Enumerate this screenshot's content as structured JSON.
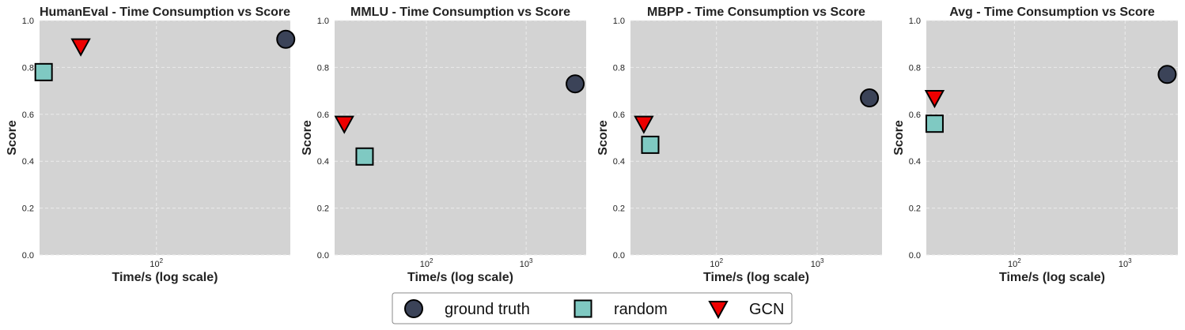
{
  "chart_data": [
    {
      "type": "scatter",
      "title": "HumanEval - Time Consumption vs Score",
      "xlabel": "Time/s (log scale)",
      "ylabel": "Score",
      "xscale": "log",
      "xlim": [
        14,
        950
      ],
      "ylim": [
        0,
        1
      ],
      "yticks": [
        "0.0",
        "0.2",
        "0.4",
        "0.6",
        "0.8",
        "1.0"
      ],
      "xticks": [
        {
          "base": "10",
          "exp": "2",
          "value": 100
        }
      ],
      "grid": true,
      "series": [
        {
          "name": "ground truth",
          "x": [
            880
          ],
          "y": [
            0.92
          ]
        },
        {
          "name": "random",
          "x": [
            15
          ],
          "y": [
            0.78
          ]
        },
        {
          "name": "GCN",
          "x": [
            28
          ],
          "y": [
            0.89
          ]
        }
      ]
    },
    {
      "type": "scatter",
      "title": "MMLU - Time Consumption vs Score",
      "xlabel": "Time/s (log scale)",
      "ylabel": "Score",
      "xscale": "log",
      "xlim": [
        12,
        4000
      ],
      "ylim": [
        0,
        1
      ],
      "yticks": [
        "0.0",
        "0.2",
        "0.4",
        "0.6",
        "0.8",
        "1.0"
      ],
      "xticks": [
        {
          "base": "10",
          "exp": "2",
          "value": 100
        },
        {
          "base": "10",
          "exp": "3",
          "value": 1000
        }
      ],
      "grid": true,
      "series": [
        {
          "name": "ground truth",
          "x": [
            3100
          ],
          "y": [
            0.73
          ]
        },
        {
          "name": "random",
          "x": [
            24
          ],
          "y": [
            0.42
          ]
        },
        {
          "name": "GCN",
          "x": [
            15
          ],
          "y": [
            0.56
          ]
        }
      ]
    },
    {
      "type": "scatter",
      "title": "MBPP - Time Consumption vs Score",
      "xlabel": "Time/s (log scale)",
      "ylabel": "Score",
      "xscale": "log",
      "xlim": [
        14,
        4400
      ],
      "ylim": [
        0,
        1
      ],
      "yticks": [
        "0.0",
        "0.2",
        "0.4",
        "0.6",
        "0.8",
        "1.0"
      ],
      "xticks": [
        {
          "base": "10",
          "exp": "2",
          "value": 100
        },
        {
          "base": "10",
          "exp": "3",
          "value": 1000
        }
      ],
      "grid": true,
      "series": [
        {
          "name": "ground truth",
          "x": [
            3300
          ],
          "y": [
            0.67
          ]
        },
        {
          "name": "random",
          "x": [
            22
          ],
          "y": [
            0.47
          ]
        },
        {
          "name": "GCN",
          "x": [
            19
          ],
          "y": [
            0.56
          ]
        }
      ]
    },
    {
      "type": "scatter",
      "title": "Avg - Time Consumption vs Score",
      "xlabel": "Time/s (log scale)",
      "ylabel": "Score",
      "xscale": "log",
      "xlim": [
        16,
        3000
      ],
      "ylim": [
        0,
        1
      ],
      "yticks": [
        "0.0",
        "0.2",
        "0.4",
        "0.6",
        "0.8",
        "1.0"
      ],
      "xticks": [
        {
          "base": "10",
          "exp": "2",
          "value": 100
        },
        {
          "base": "10",
          "exp": "3",
          "value": 1000
        }
      ],
      "grid": true,
      "series": [
        {
          "name": "ground truth",
          "x": [
            2400
          ],
          "y": [
            0.77
          ]
        },
        {
          "name": "random",
          "x": [
            19
          ],
          "y": [
            0.56
          ]
        },
        {
          "name": "GCN",
          "x": [
            19
          ],
          "y": [
            0.67
          ]
        }
      ]
    }
  ],
  "legend": {
    "placement": "bottom-center",
    "entries": [
      {
        "name": "ground truth",
        "marker": "circle",
        "color": "#3b4358"
      },
      {
        "name": "random",
        "marker": "square",
        "color": "#7fc9c2"
      },
      {
        "name": "GCN",
        "marker": "triangle-down",
        "color": "#ee0000"
      }
    ]
  },
  "colors": {
    "plot_background": "#d3d3d3",
    "grid": "#ececec",
    "marker_edge": "#000000"
  }
}
